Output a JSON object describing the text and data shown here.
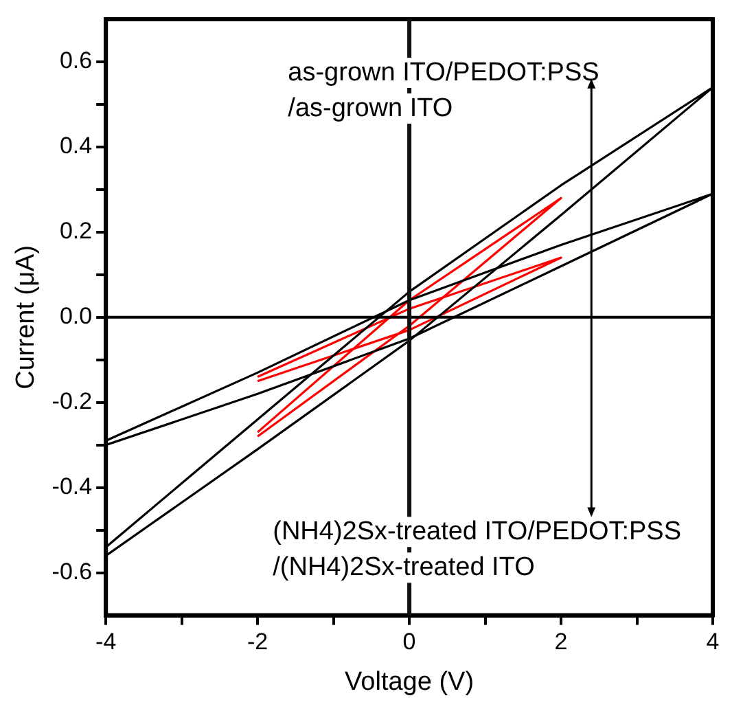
{
  "chart_data": {
    "type": "line",
    "xlabel": "Voltage (V)",
    "ylabel": "Current (μA)",
    "xlim": [
      -4,
      4
    ],
    "ylim": [
      -0.7,
      0.7
    ],
    "xticks": [
      -4,
      {
        "value": -3,
        "label": null
      },
      -2,
      {
        "value": -1,
        "label": null
      },
      0,
      {
        "value": 1,
        "label": null
      },
      2,
      {
        "value": 3,
        "label": null
      },
      4
    ],
    "yticks": [
      {
        "value": -0.6,
        "label": "-0.6"
      },
      {
        "value": -0.5,
        "label": null
      },
      {
        "value": -0.4,
        "label": "-0.4"
      },
      {
        "value": -0.3,
        "label": null
      },
      {
        "value": -0.2,
        "label": "-0.2"
      },
      {
        "value": -0.1,
        "label": null
      },
      {
        "value": 0,
        "label": "0.0"
      },
      {
        "value": 0.1,
        "label": null
      },
      {
        "value": 0.2,
        "label": "0.2"
      },
      {
        "value": 0.3,
        "label": null
      },
      {
        "value": 0.4,
        "label": "0.4"
      },
      {
        "value": 0.5,
        "label": null
      },
      {
        "value": 0.6,
        "label": "0.6"
      }
    ],
    "grid": false,
    "legend": false,
    "marker": "none",
    "line_style": "solid",
    "ref_lines": [
      {
        "axis": "y",
        "value": 0,
        "color": "#000000"
      },
      {
        "axis": "x",
        "value": 0,
        "color": "#111111"
      }
    ],
    "annotations": [
      "as-grown ITO/PEDOT:PSS\n/as-grown ITO",
      "(NH4)2Sx-treated ITO/PEDOT:PSS\n/(NH4)2Sx-treated ITO"
    ],
    "series": [
      {
        "color": "#000000",
        "x": [
          -4,
          -2,
          0,
          2,
          4,
          2,
          0,
          -2,
          -4
        ],
        "values": [
          -0.56,
          -0.31,
          -0.055,
          0.24,
          0.54,
          0.31,
          0.06,
          -0.24,
          -0.54
        ]
      },
      {
        "color": "#000000",
        "x": [
          -4,
          -2,
          0,
          2,
          4,
          2,
          0,
          -2,
          -4
        ],
        "values": [
          -0.3,
          -0.18,
          -0.05,
          0.12,
          0.29,
          0.17,
          0.04,
          -0.13,
          -0.29
        ]
      },
      {
        "color": "#ff0000",
        "x": [
          -2,
          0,
          2,
          0,
          -2
        ],
        "values": [
          -0.28,
          -0.02,
          0.28,
          0.04,
          -0.27
        ]
      },
      {
        "color": "#ff0000",
        "x": [
          -2,
          0,
          2,
          0,
          -2
        ],
        "values": [
          -0.15,
          -0.03,
          0.14,
          0.02,
          -0.14
        ]
      }
    ]
  }
}
